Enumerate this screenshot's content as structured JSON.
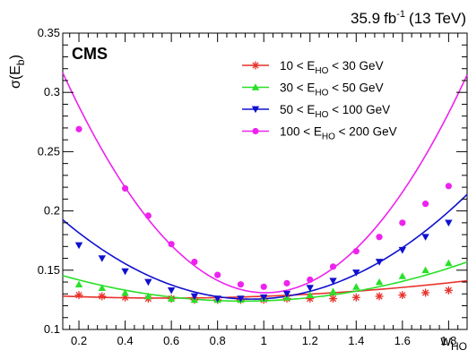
{
  "chart_data": {
    "type": "scatter",
    "title": "",
    "experiment": "CMS",
    "luminosity": {
      "value": "35.9",
      "unit": "fb",
      "exponent": "-1",
      "energy": "(13 TeV)"
    },
    "xlabel": {
      "base": "w",
      "sub": "HO"
    },
    "ylabel": {
      "base": "σ(E",
      "sub": "b",
      "close": ")"
    },
    "xlim": [
      0.13,
      1.88
    ],
    "ylim": [
      0.1,
      0.35
    ],
    "xticks_major": [
      0.2,
      0.4,
      0.6,
      0.8,
      1,
      1.2,
      1.4,
      1.6,
      1.8
    ],
    "xtick_labels": [
      "0.2",
      "0.4",
      "0.6",
      "0.8",
      "1",
      "1.2",
      "1.4",
      "1.6",
      "1.8"
    ],
    "yticks_major": [
      0.1,
      0.15,
      0.2,
      0.25,
      0.3,
      0.35
    ],
    "ytick_labels": [
      "0.1",
      "0.15",
      "0.2",
      "0.25",
      "0.3",
      "0.35"
    ],
    "grid": false,
    "legend_position": "top-right",
    "series": [
      {
        "name": {
          "pre": "10 < E",
          "sub": "HO",
          "post": " < 30 GeV"
        },
        "color": "#e8312a",
        "marker": "star",
        "x": [
          0.2,
          0.3,
          0.4,
          0.5,
          0.6,
          0.7,
          0.8,
          0.9,
          1.0,
          1.1,
          1.2,
          1.3,
          1.4,
          1.5,
          1.6,
          1.7,
          1.8
        ],
        "y": [
          0.129,
          0.128,
          0.127,
          0.126,
          0.126,
          0.125,
          0.125,
          0.125,
          0.125,
          0.126,
          0.126,
          0.126,
          0.127,
          0.128,
          0.129,
          0.131,
          0.133
        ],
        "fit": [
          0.1293,
          -0.0099,
          0.0086
        ]
      },
      {
        "name": {
          "pre": "30 < E",
          "sub": "HO",
          "post": " < 50 GeV"
        },
        "color": "#28e028",
        "marker": "triangle-up",
        "x": [
          0.2,
          0.3,
          0.4,
          0.5,
          0.6,
          0.7,
          0.8,
          0.9,
          1.0,
          1.1,
          1.2,
          1.3,
          1.4,
          1.5,
          1.6,
          1.7,
          1.8
        ],
        "y": [
          0.138,
          0.135,
          0.131,
          0.128,
          0.126,
          0.125,
          0.125,
          0.125,
          0.126,
          0.127,
          0.129,
          0.132,
          0.136,
          0.14,
          0.145,
          0.15,
          0.156
        ],
        "fit": [
          0.1532,
          -0.0642,
          0.0352
        ]
      },
      {
        "name": {
          "pre": "50 < E",
          "sub": "HO",
          "post": " < 100 GeV"
        },
        "color": "#1010d0",
        "marker": "triangle-down",
        "x": [
          0.2,
          0.3,
          0.4,
          0.5,
          0.6,
          0.7,
          0.8,
          0.9,
          1.0,
          1.1,
          1.2,
          1.3,
          1.4,
          1.5,
          1.6,
          1.7,
          1.8
        ],
        "y": [
          0.171,
          0.16,
          0.149,
          0.14,
          0.133,
          0.128,
          0.126,
          0.126,
          0.127,
          0.13,
          0.135,
          0.141,
          0.148,
          0.157,
          0.167,
          0.178,
          0.19
        ],
        "fit": [
          0.2156,
          -0.1906,
          0.1009
        ]
      },
      {
        "name": {
          "pre": "100 < E",
          "sub": "HO",
          "post": " < 200 GeV"
        },
        "color": "#ee22ee",
        "marker": "circle",
        "x": [
          0.2,
          0.4,
          0.5,
          0.6,
          0.7,
          0.8,
          0.9,
          1.0,
          1.1,
          1.2,
          1.3,
          1.4,
          1.5,
          1.6,
          1.7,
          1.8
        ],
        "y": [
          0.269,
          0.219,
          0.196,
          0.172,
          0.157,
          0.146,
          0.138,
          0.136,
          0.139,
          0.142,
          0.153,
          0.166,
          0.178,
          0.19,
          0.206,
          0.221
        ],
        "fit": [
          0.3756,
          -0.4858,
          0.2412
        ]
      }
    ]
  }
}
